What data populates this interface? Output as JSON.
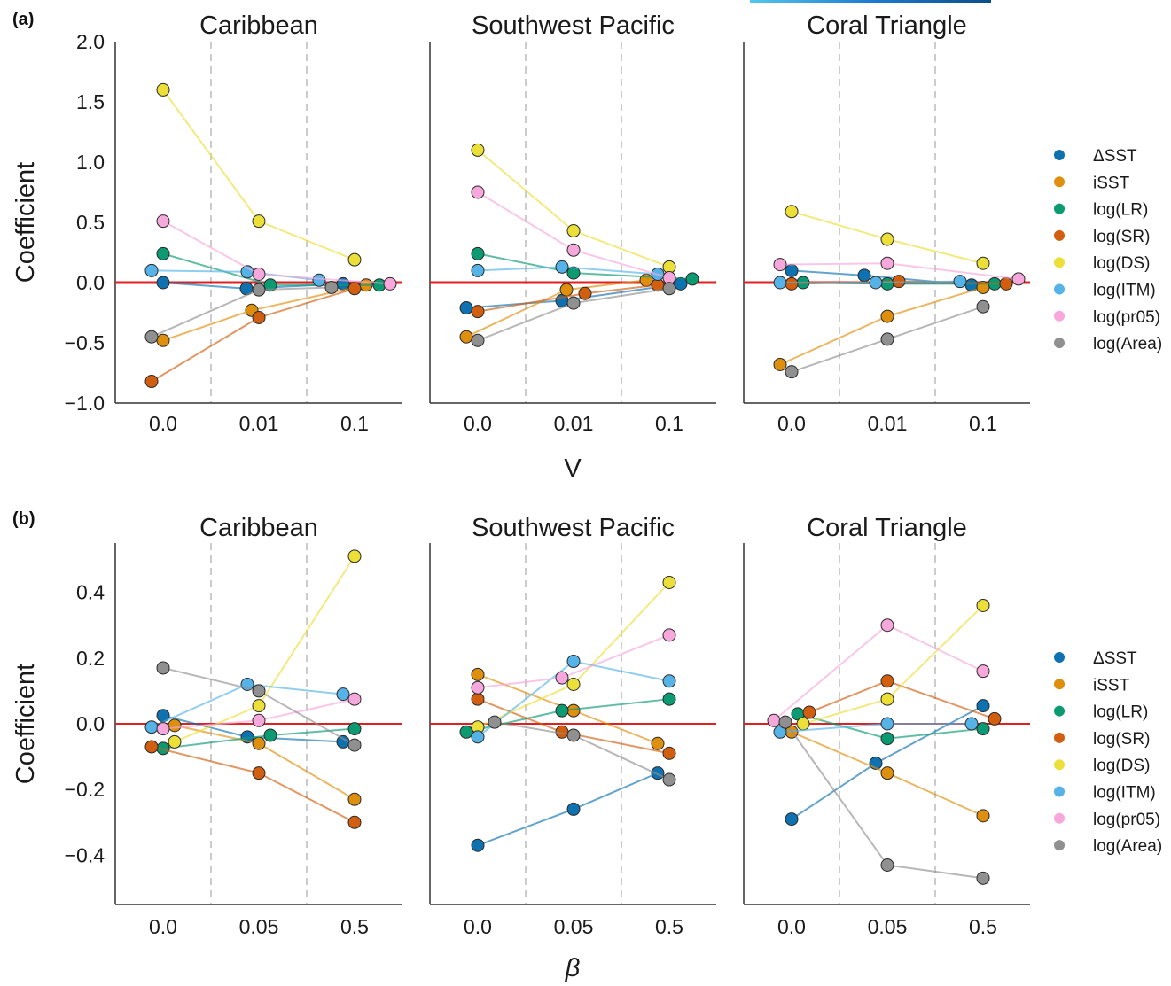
{
  "figure": {
    "rows": [
      {
        "label": "(a)",
        "xlabel": "V",
        "ylabel": "Coefficient",
        "legend_title": ""
      },
      {
        "label": "(b)",
        "xlabel": "β",
        "ylabel": "Coefficient",
        "legend_title": ""
      }
    ]
  },
  "chart_data": [
    {
      "panel": "(a)",
      "type": "scatter",
      "connected": true,
      "title": "Caribbean",
      "xlabel": "V",
      "ylabel": "Coefficient",
      "x_categories": [
        "0.0",
        "0.01",
        "0.1"
      ],
      "ylim": [
        -1.0,
        2.0
      ],
      "yticks": [
        -1.0,
        -0.5,
        0.0,
        0.5,
        1.0,
        1.5,
        2.0
      ],
      "yticklabels": [
        "−1.0",
        "−0.5",
        "0.0",
        "0.5",
        "1.0",
        "1.5",
        "2.0"
      ],
      "reference_line": 0,
      "grid": "vertical dashed separators",
      "legend": "right",
      "series": [
        {
          "name": "ΔSST",
          "values": [
            0.0,
            -0.05,
            -0.01
          ]
        },
        {
          "name": "iSST",
          "values": [
            -0.48,
            -0.23,
            -0.02
          ]
        },
        {
          "name": "log(LR)",
          "values": [
            0.24,
            -0.02,
            -0.02
          ]
        },
        {
          "name": "log(SR)",
          "values": [
            -0.82,
            -0.29,
            -0.05
          ]
        },
        {
          "name": "log(DS)",
          "values": [
            1.6,
            0.51,
            0.19
          ]
        },
        {
          "name": "log(ITM)",
          "values": [
            0.1,
            0.09,
            0.02
          ]
        },
        {
          "name": "log(pr05)",
          "values": [
            0.51,
            0.07,
            -0.01
          ]
        },
        {
          "name": "log(Area)",
          "values": [
            -0.45,
            -0.06,
            -0.04
          ]
        }
      ]
    },
    {
      "panel": "(a)",
      "type": "scatter",
      "connected": true,
      "title": "Southwest Pacific",
      "xlabel": "V",
      "ylabel": "Coefficient",
      "x_categories": [
        "0.0",
        "0.01",
        "0.1"
      ],
      "ylim": [
        -1.0,
        2.0
      ],
      "reference_line": 0,
      "legend": "right",
      "series": [
        {
          "name": "ΔSST",
          "values": [
            -0.21,
            -0.15,
            -0.01
          ]
        },
        {
          "name": "iSST",
          "values": [
            -0.45,
            -0.06,
            0.02
          ]
        },
        {
          "name": "log(LR)",
          "values": [
            0.24,
            0.08,
            0.03
          ]
        },
        {
          "name": "log(SR)",
          "values": [
            -0.24,
            -0.09,
            -0.02
          ]
        },
        {
          "name": "log(DS)",
          "values": [
            1.1,
            0.43,
            0.13
          ]
        },
        {
          "name": "log(ITM)",
          "values": [
            0.1,
            0.13,
            0.07
          ]
        },
        {
          "name": "log(pr05)",
          "values": [
            0.75,
            0.27,
            0.04
          ]
        },
        {
          "name": "log(Area)",
          "values": [
            -0.48,
            -0.17,
            -0.05
          ]
        }
      ]
    },
    {
      "panel": "(a)",
      "type": "scatter",
      "connected": true,
      "title": "Coral Triangle",
      "xlabel": "V",
      "ylabel": "Coefficient",
      "x_categories": [
        "0.0",
        "0.01",
        "0.1"
      ],
      "ylim": [
        -1.0,
        2.0
      ],
      "reference_line": 0,
      "legend": "right",
      "series": [
        {
          "name": "ΔSST",
          "values": [
            0.1,
            0.06,
            -0.02
          ]
        },
        {
          "name": "iSST",
          "values": [
            -0.68,
            -0.28,
            -0.04
          ]
        },
        {
          "name": "log(LR)",
          "values": [
            0.0,
            -0.01,
            -0.01
          ]
        },
        {
          "name": "log(SR)",
          "values": [
            -0.01,
            0.01,
            -0.01
          ]
        },
        {
          "name": "log(DS)",
          "values": [
            0.59,
            0.36,
            0.16
          ]
        },
        {
          "name": "log(ITM)",
          "values": [
            0.0,
            0.0,
            0.01
          ]
        },
        {
          "name": "log(pr05)",
          "values": [
            0.15,
            0.16,
            0.03
          ]
        },
        {
          "name": "log(Area)",
          "values": [
            -0.74,
            -0.47,
            -0.2
          ]
        }
      ]
    },
    {
      "panel": "(b)",
      "type": "scatter",
      "connected": true,
      "title": "Caribbean",
      "xlabel": "β",
      "ylabel": "Coefficient",
      "x_categories": [
        "0.0",
        "0.05",
        "0.5"
      ],
      "ylim": [
        -0.55,
        0.55
      ],
      "yticks": [
        -0.4,
        -0.2,
        0.0,
        0.2,
        0.4
      ],
      "yticklabels": [
        "−0.4",
        "−0.2",
        "0.0",
        "0.2",
        "0.4"
      ],
      "reference_line": 0,
      "legend": "right",
      "series": [
        {
          "name": "ΔSST",
          "values": [
            0.025,
            -0.04,
            -0.055
          ]
        },
        {
          "name": "iSST",
          "values": [
            -0.005,
            -0.06,
            -0.23
          ]
        },
        {
          "name": "log(LR)",
          "values": [
            -0.075,
            -0.035,
            -0.015
          ]
        },
        {
          "name": "log(SR)",
          "values": [
            -0.07,
            -0.15,
            -0.3
          ]
        },
        {
          "name": "log(DS)",
          "values": [
            -0.055,
            0.055,
            0.51
          ]
        },
        {
          "name": "log(ITM)",
          "values": [
            -0.01,
            0.12,
            0.09
          ]
        },
        {
          "name": "log(pr05)",
          "values": [
            -0.015,
            0.01,
            0.075
          ]
        },
        {
          "name": "log(Area)",
          "values": [
            0.17,
            0.1,
            -0.065
          ]
        }
      ]
    },
    {
      "panel": "(b)",
      "type": "scatter",
      "connected": true,
      "title": "Southwest Pacific",
      "xlabel": "β",
      "ylabel": "Coefficient",
      "x_categories": [
        "0.0",
        "0.05",
        "0.5"
      ],
      "ylim": [
        -0.55,
        0.55
      ],
      "reference_line": 0,
      "legend": "right",
      "series": [
        {
          "name": "ΔSST",
          "values": [
            -0.37,
            -0.26,
            -0.15
          ]
        },
        {
          "name": "iSST",
          "values": [
            0.15,
            0.04,
            -0.06
          ]
        },
        {
          "name": "log(LR)",
          "values": [
            -0.025,
            0.04,
            0.075
          ]
        },
        {
          "name": "log(SR)",
          "values": [
            0.075,
            -0.025,
            -0.09
          ]
        },
        {
          "name": "log(DS)",
          "values": [
            -0.01,
            0.12,
            0.43
          ]
        },
        {
          "name": "log(ITM)",
          "values": [
            -0.04,
            0.19,
            0.13
          ]
        },
        {
          "name": "log(pr05)",
          "values": [
            0.11,
            0.14,
            0.27
          ]
        },
        {
          "name": "log(Area)",
          "values": [
            0.005,
            -0.035,
            -0.17
          ]
        }
      ]
    },
    {
      "panel": "(b)",
      "type": "scatter",
      "connected": true,
      "title": "Coral Triangle",
      "xlabel": "β",
      "ylabel": "Coefficient",
      "x_categories": [
        "0.0",
        "0.05",
        "0.5"
      ],
      "ylim": [
        -0.55,
        0.55
      ],
      "reference_line": 0,
      "legend": "right",
      "series": [
        {
          "name": "ΔSST",
          "values": [
            -0.29,
            -0.12,
            0.055
          ]
        },
        {
          "name": "iSST",
          "values": [
            -0.025,
            -0.15,
            -0.28
          ]
        },
        {
          "name": "log(LR)",
          "values": [
            0.03,
            -0.045,
            -0.015
          ]
        },
        {
          "name": "log(SR)",
          "values": [
            0.035,
            0.13,
            0.015
          ]
        },
        {
          "name": "log(DS)",
          "values": [
            0.0,
            0.075,
            0.36
          ]
        },
        {
          "name": "log(ITM)",
          "values": [
            -0.025,
            0.0,
            0.0
          ]
        },
        {
          "name": "log(pr05)",
          "values": [
            0.01,
            0.3,
            0.16
          ]
        },
        {
          "name": "log(Area)",
          "values": [
            0.005,
            -0.43,
            -0.47
          ]
        }
      ]
    }
  ],
  "legend_items": [
    {
      "name": "ΔSST",
      "color": "#0f72b0"
    },
    {
      "name": "iSST",
      "color": "#df8f0e"
    },
    {
      "name": "log(LR)",
      "color": "#0b9a72"
    },
    {
      "name": "log(SR)",
      "color": "#d25e0f"
    },
    {
      "name": "log(DS)",
      "color": "#ecdf38"
    },
    {
      "name": "log(ITM)",
      "color": "#55b3e8"
    },
    {
      "name": "log(pr05)",
      "color": "#f6a8dc"
    },
    {
      "name": "log(Area)",
      "color": "#909090"
    }
  ],
  "colors": {
    "reference_line": "#e02020",
    "separator": "#cccccc",
    "axis": "#333333"
  }
}
